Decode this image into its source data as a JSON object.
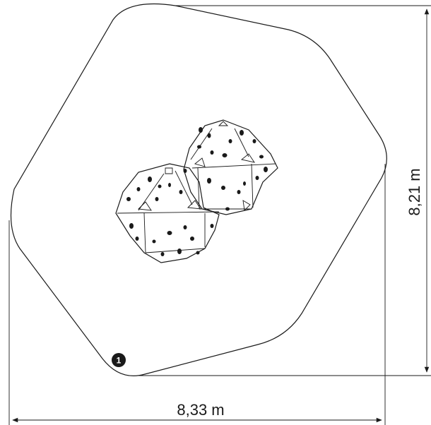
{
  "dimensions": {
    "width_label": "8,33 m",
    "height_label": "8,21 m"
  },
  "marker": {
    "label": "1"
  },
  "colors": {
    "line": "#1a1a1a",
    "background": "#ffffff"
  }
}
